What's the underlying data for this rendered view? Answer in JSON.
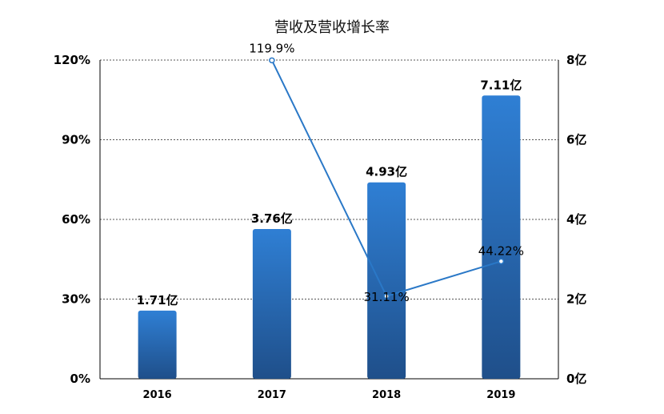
{
  "chart_data": {
    "type": "bar",
    "title": "营收及营收增长率",
    "categories": [
      "2016",
      "2017",
      "2018",
      "2019"
    ],
    "series": [
      {
        "type": "bar",
        "axis": "right",
        "values": [
          1.71,
          3.76,
          4.93,
          7.11
        ],
        "labels": [
          "1.71亿",
          "3.76亿",
          "4.93亿",
          "7.11亿"
        ]
      },
      {
        "type": "line",
        "axis": "left",
        "points": [
          {
            "category": "2017",
            "value": 119.9,
            "label": "119.9%"
          },
          {
            "category": "2018",
            "value": 31.11,
            "label": "31.11%"
          },
          {
            "category": "2019",
            "value": 44.22,
            "label": "44.22%"
          }
        ]
      }
    ],
    "y_left": {
      "min": 0,
      "max": 120,
      "ticks": [
        "0%",
        "30%",
        "60%",
        "90%",
        "120%"
      ]
    },
    "y_right": {
      "min": 0,
      "max": 8,
      "ticks": [
        "0亿",
        "2亿",
        "4亿",
        "6亿",
        "8亿"
      ]
    },
    "grid": true,
    "colors": {
      "bar_top": "#2f7fd4",
      "bar_bottom": "#1f4f8a",
      "line": "#2a78c7",
      "grid": "#555555"
    }
  }
}
